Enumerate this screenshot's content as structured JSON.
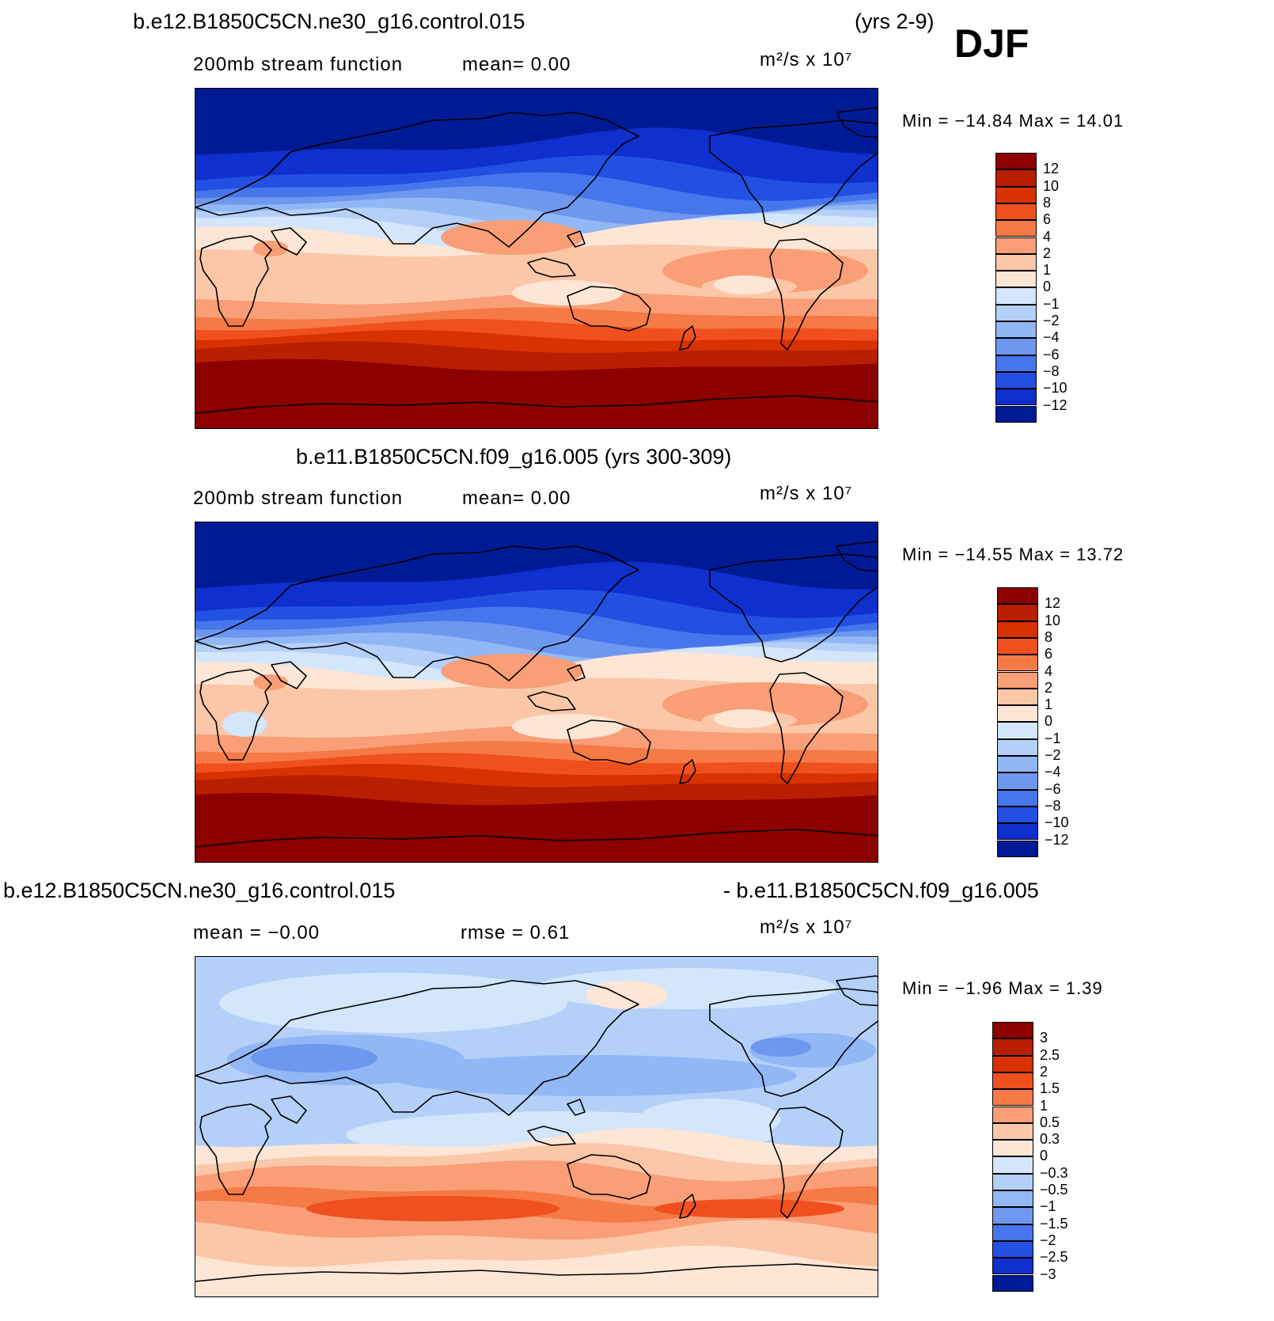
{
  "season": "DJF",
  "panels": [
    {
      "title_left": "b.e12.B1850C5CN.ne30_g16.control.015",
      "title_right": "(yrs 2-9)",
      "subtitle_left": "200mb  stream  function",
      "subtitle_stat": "mean=    0.00",
      "units": "m²/s  x  10⁷",
      "minmax": "Min  =  −14.84  Max  =   14.01"
    },
    {
      "title_center": "b.e11.B1850C5CN.f09_g16.005 (yrs 300-309)",
      "subtitle_left": "200mb  stream  function",
      "subtitle_stat": "mean=    0.00",
      "units": "m²/s  x  10⁷",
      "minmax": "Min  =  −14.55  Max  =   13.72"
    },
    {
      "title_left": "b.e12.B1850C5CN.ne30_g16.control.015",
      "title_right": "- b.e11.B1850C5CN.f09_g16.005",
      "subtitle_left": "mean  =   −0.00",
      "subtitle_stat": "rmse  =    0.61",
      "units": "m²/s  x  10⁷",
      "minmax": "Min  =   −1.96  Max  =    1.39"
    }
  ],
  "chart_data": [
    {
      "type": "heatmap",
      "title": "200mb stream function (control.015, yrs 2-9)",
      "units": "m2/s x 10^7",
      "mean": 0.0,
      "min": -14.84,
      "max": 14.01,
      "levels": [
        "12",
        "10",
        "8",
        "6",
        "4",
        "2",
        "1",
        "0",
        "−1",
        "−2",
        "−4",
        "−6",
        "−8",
        "−10",
        "−12"
      ],
      "colors": [
        "#8c0000",
        "#b81e00",
        "#d83200",
        "#f0501e",
        "#f57a45",
        "#f99e77",
        "#fbc7a8",
        "#fde6d6",
        "#d3e6fb",
        "#b4d0f8",
        "#92b7f5",
        "#6e97f0",
        "#4676ec",
        "#2350e3",
        "#0f2fce",
        "#001a96"
      ]
    },
    {
      "type": "heatmap",
      "title": "200mb stream function (f09_g16.005, yrs 300-309)",
      "units": "m2/s x 10^7",
      "mean": 0.0,
      "min": -14.55,
      "max": 13.72,
      "levels": [
        "12",
        "10",
        "8",
        "6",
        "4",
        "2",
        "1",
        "0",
        "−1",
        "−2",
        "−4",
        "−6",
        "−8",
        "−10",
        "−12"
      ],
      "colors": [
        "#8c0000",
        "#b81e00",
        "#d83200",
        "#f0501e",
        "#f57a45",
        "#f99e77",
        "#fbc7a8",
        "#fde6d6",
        "#d3e6fb",
        "#b4d0f8",
        "#92b7f5",
        "#6e97f0",
        "#4676ec",
        "#2350e3",
        "#0f2fce",
        "#001a96"
      ]
    },
    {
      "type": "heatmap",
      "title": "Difference control.015 - f09_g16.005",
      "units": "m2/s x 10^7",
      "mean": -0.0,
      "rmse": 0.61,
      "min": -1.96,
      "max": 1.39,
      "levels": [
        "3",
        "2.5",
        "2",
        "1.5",
        "1",
        "0.5",
        "0.3",
        "0",
        "−0.3",
        "−0.5",
        "−1",
        "−1.5",
        "−2",
        "−2.5",
        "−3"
      ],
      "colors": [
        "#8c0000",
        "#b81e00",
        "#d83200",
        "#f0501e",
        "#f57a45",
        "#f99e77",
        "#fbc7a8",
        "#fde6d6",
        "#d3e6fb",
        "#b4d0f8",
        "#92b7f5",
        "#6e97f0",
        "#4676ec",
        "#2350e3",
        "#0f2fce",
        "#001a96"
      ]
    }
  ]
}
